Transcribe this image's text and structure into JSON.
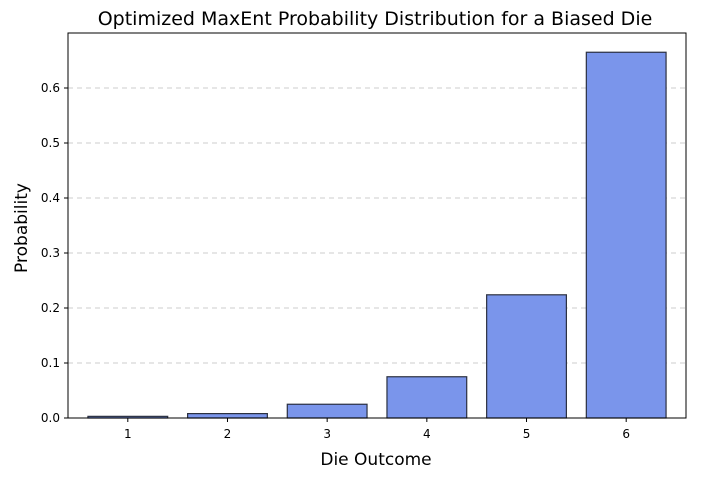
{
  "chart_data": {
    "type": "bar",
    "title": "Optimized MaxEnt Probability Distribution for a Biased Die",
    "xlabel": "Die Outcome",
    "ylabel": "Probability",
    "categories": [
      "1",
      "2",
      "3",
      "4",
      "5",
      "6"
    ],
    "values": [
      0.003,
      0.008,
      0.025,
      0.075,
      0.224,
      0.665
    ],
    "ylim": [
      0,
      0.7
    ],
    "yticks": [
      0.0,
      0.1,
      0.2,
      0.3,
      0.4,
      0.5,
      0.6
    ],
    "ytick_labels": [
      "0.0",
      "0.1",
      "0.2",
      "0.3",
      "0.4",
      "0.5",
      "0.6"
    ],
    "grid": "y-dashed",
    "bar_color": "#7a95eb",
    "edge_color": "#2b3040"
  }
}
